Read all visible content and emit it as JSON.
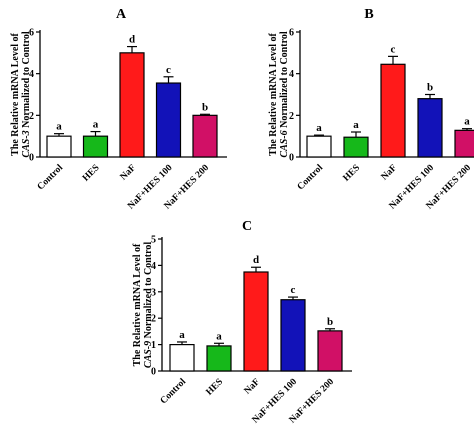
{
  "colors": {
    "Control": "#ffffff",
    "HES": "#16b81a",
    "NaF": "#ff1a1a",
    "NaF+HES 100": "#1212b8",
    "NaF+HES 200": "#d11066"
  },
  "chart_data": [
    {
      "type": "bar",
      "panel": "A",
      "categories": [
        "Control",
        "HES",
        "NaF",
        "NaF+HES 100",
        "NaF+HES 200"
      ],
      "values": [
        1.0,
        1.0,
        5.0,
        3.55,
        2.0
      ],
      "errors": [
        0.12,
        0.22,
        0.3,
        0.3,
        0.05
      ],
      "letters": [
        "a",
        "a",
        "d",
        "c",
        "b"
      ],
      "ylabel_line1": "The Relative mRNA Level of",
      "ylabel_gene": "CAS-3",
      "ylabel_line2_rest": " Normalized to Control",
      "ylim": [
        0,
        6
      ],
      "yticks": [
        0,
        2,
        4,
        6
      ]
    },
    {
      "type": "bar",
      "panel": "B",
      "categories": [
        "Control",
        "HES",
        "NaF",
        "NaF+HES 100",
        "NaF+HES 200"
      ],
      "values": [
        1.0,
        0.95,
        4.45,
        2.8,
        1.28
      ],
      "errors": [
        0.05,
        0.25,
        0.38,
        0.2,
        0.08
      ],
      "letters": [
        "a",
        "a",
        "c",
        "b",
        "a"
      ],
      "ylabel_line1": "The Relative mRNA Level of",
      "ylabel_gene": "CAS-6",
      "ylabel_line2_rest": " Normalized to Control",
      "ylim": [
        0,
        6
      ],
      "yticks": [
        0,
        2,
        4,
        6
      ]
    },
    {
      "type": "bar",
      "panel": "C",
      "categories": [
        "Control",
        "HES",
        "NaF",
        "NaF+HES 100",
        "NaF+HES 200"
      ],
      "values": [
        1.0,
        0.95,
        3.75,
        2.7,
        1.52
      ],
      "errors": [
        0.1,
        0.1,
        0.18,
        0.1,
        0.08
      ],
      "letters": [
        "a",
        "a",
        "d",
        "c",
        "b"
      ],
      "ylabel_line1": "The Relative mRNA Level of",
      "ylabel_gene": "CAS-9",
      "ylabel_line2_rest": " Normalized to Control",
      "ylim": [
        0,
        5
      ],
      "yticks": [
        0,
        1,
        2,
        3,
        4,
        5
      ]
    }
  ]
}
